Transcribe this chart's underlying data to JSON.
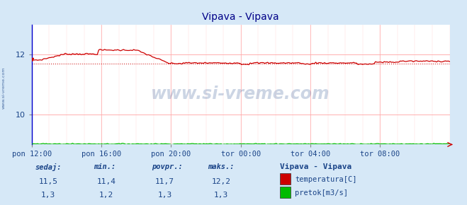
{
  "title": "Vipava - Vipava",
  "bg_color": "#d6e8f7",
  "plot_bg_color": "#ffffff",
  "x_labels": [
    "pon 12:00",
    "pon 16:00",
    "pon 20:00",
    "tor 00:00",
    "tor 04:00",
    "tor 08:00"
  ],
  "x_ticks_norm": [
    0.0,
    0.1667,
    0.3333,
    0.5,
    0.6667,
    0.8333
  ],
  "y_min": 9.0,
  "y_max": 13.0,
  "y_ticks": [
    10,
    12
  ],
  "temp_avg": 11.7,
  "temp_color": "#cc0000",
  "flow_color": "#00bb00",
  "grid_color": "#ffaaaa",
  "grid_h_color": "#ffaaaa",
  "watermark": "www.si-vreme.com",
  "watermark_color": "#1a4488",
  "station_label": "Vipava - Vipava",
  "legend_items": [
    "temperatura[C]",
    "pretok[m3/s]"
  ],
  "legend_colors": [
    "#cc0000",
    "#00bb00"
  ],
  "info_labels": [
    "sedaj:",
    "min.:",
    "povpr.:",
    "maks.:"
  ],
  "vals_temp": [
    "11,5",
    "11,4",
    "11,7",
    "12,2"
  ],
  "vals_flow": [
    "1,3",
    "1,2",
    "1,3",
    "1,3"
  ],
  "info_color": "#1a4488",
  "sidebar_text": "www.si-vreme.com",
  "sidebar_color": "#1a4488",
  "left_spine_color": "#0000cc",
  "axis_label_color": "#1a4488",
  "arrow_color": "#cc0000"
}
